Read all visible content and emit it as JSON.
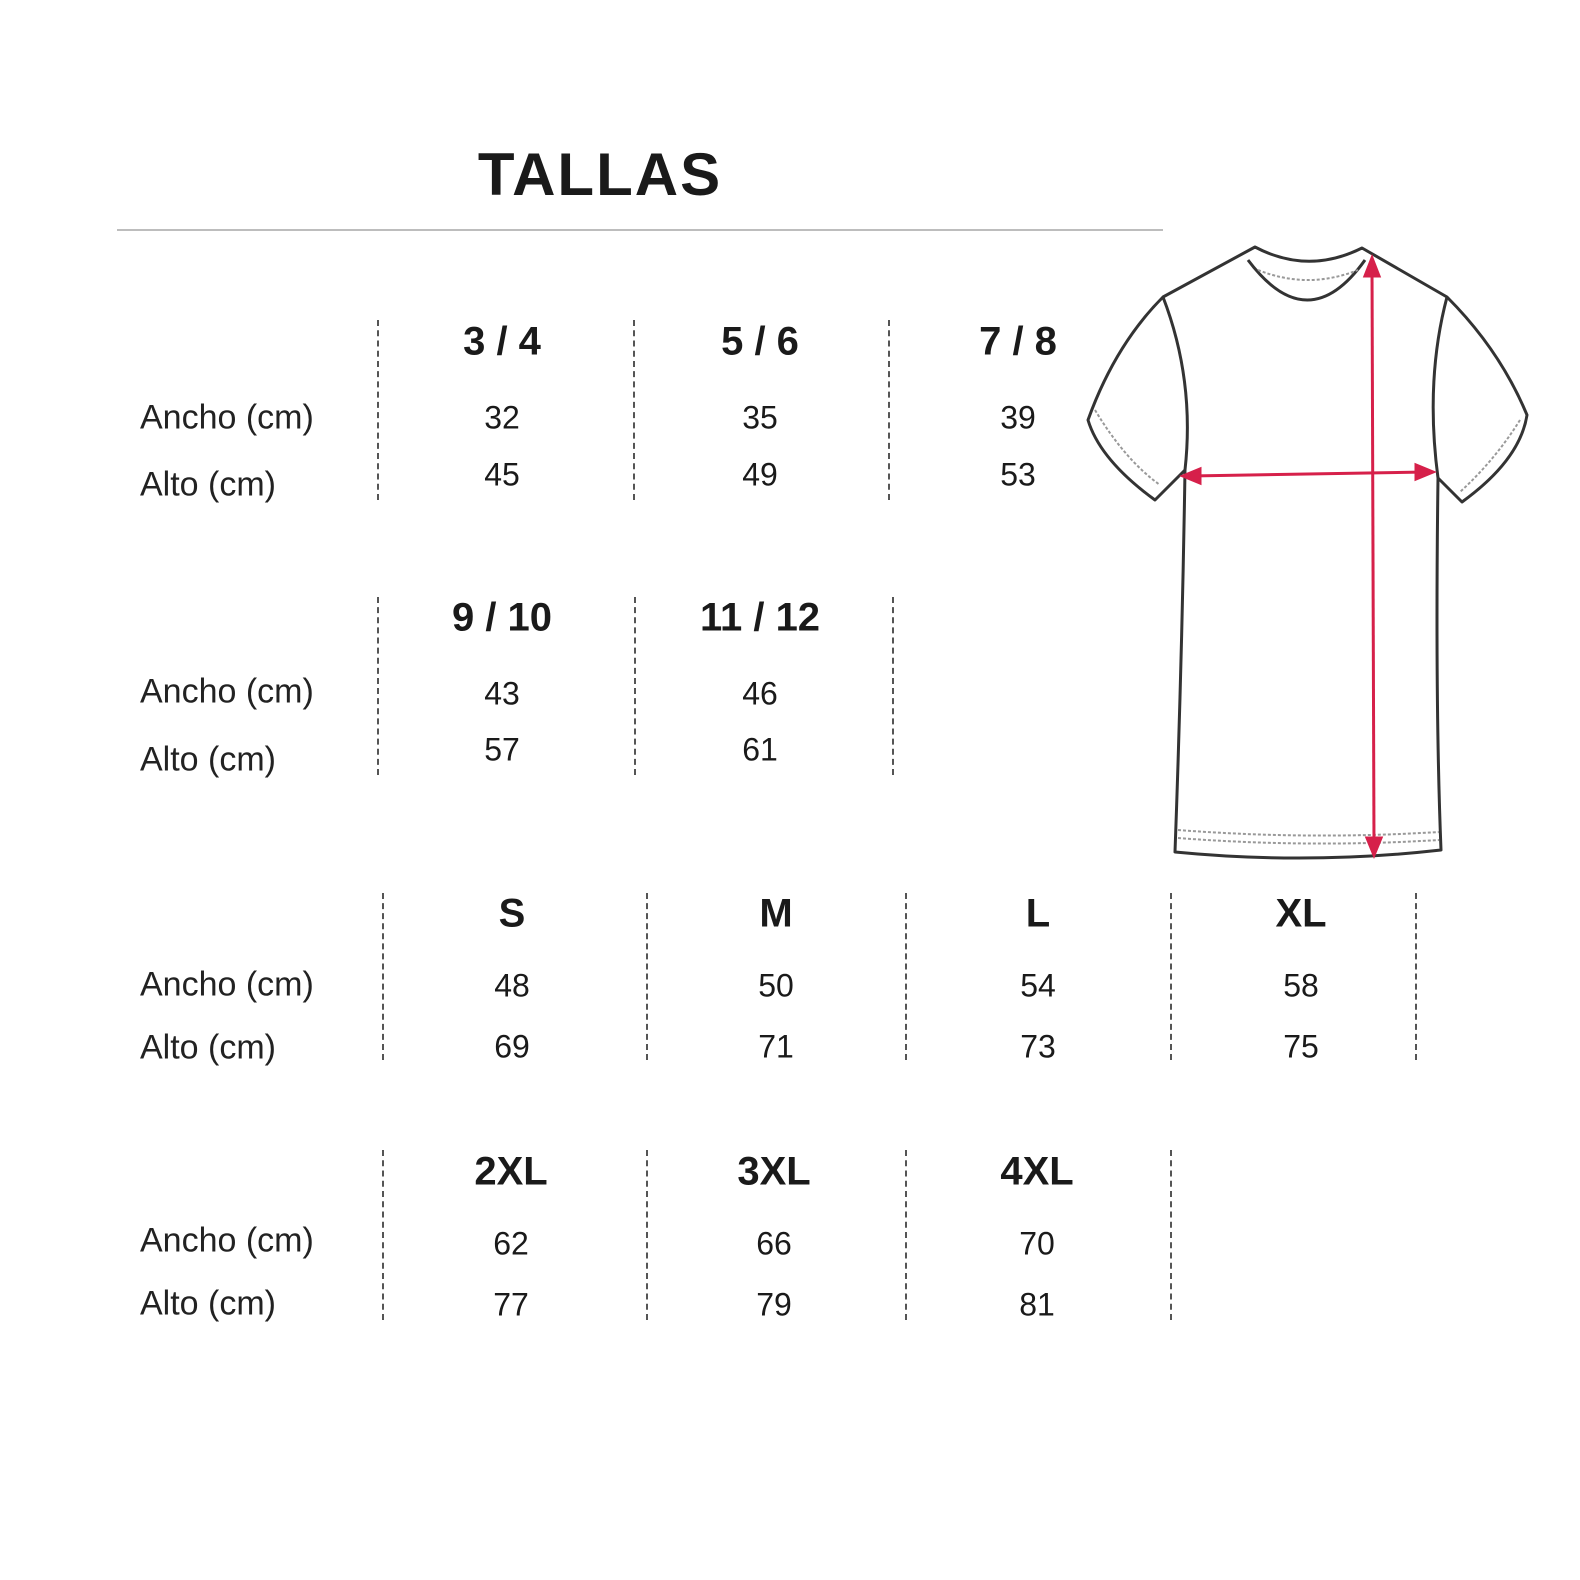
{
  "title": "TALLAS",
  "row_labels": {
    "ancho": "Ancho (cm)",
    "alto": "Alto (cm)"
  },
  "colors": {
    "measure_arrow": "#d6204a",
    "outline": "#333333"
  },
  "groups": [
    {
      "sizes": [
        {
          "size": "3 / 4",
          "ancho": "32",
          "alto": "45"
        },
        {
          "size": "5 / 6",
          "ancho": "35",
          "alto": "49"
        },
        {
          "size": "7 / 8",
          "ancho": "39",
          "alto": "53"
        }
      ]
    },
    {
      "sizes": [
        {
          "size": "9 / 10",
          "ancho": "43",
          "alto": "57"
        },
        {
          "size": "11 / 12",
          "ancho": "46",
          "alto": "61"
        }
      ]
    },
    {
      "sizes": [
        {
          "size": "S",
          "ancho": "48",
          "alto": "69"
        },
        {
          "size": "M",
          "ancho": "50",
          "alto": "71"
        },
        {
          "size": "L",
          "ancho": "54",
          "alto": "73"
        },
        {
          "size": "XL",
          "ancho": "58",
          "alto": "75"
        }
      ]
    },
    {
      "sizes": [
        {
          "size": "2XL",
          "ancho": "62",
          "alto": "77"
        },
        {
          "size": "3XL",
          "ancho": "66",
          "alto": "79"
        },
        {
          "size": "4XL",
          "ancho": "70",
          "alto": "81"
        }
      ]
    }
  ]
}
